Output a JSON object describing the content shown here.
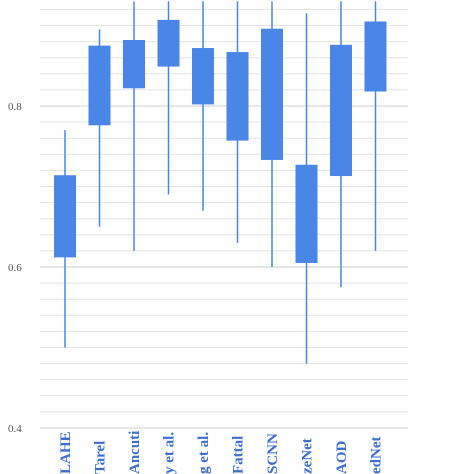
{
  "chart_data": {
    "type": "box",
    "title": "",
    "xlabel": "",
    "ylabel": "",
    "ylim": [
      0.4,
      0.9
    ],
    "yticks": [
      0.4,
      0.6,
      0.8
    ],
    "ytick_labels": [
      "0.4",
      "0.6",
      "0.8"
    ],
    "grid": true,
    "categories": [
      "LAHE",
      "Tarel",
      "Ancuti",
      "y et al.",
      "g et al.",
      "Fattal",
      "SCNN",
      "zeNet",
      "AOD",
      "edNet"
    ],
    "series": [
      {
        "whisker_low": [
          0.5,
          0.65,
          0.62,
          0.69,
          0.67,
          0.63,
          0.6,
          0.48,
          0.575,
          0.62
        ],
        "q1": [
          0.612,
          0.776,
          0.822,
          0.849,
          0.802,
          0.757,
          0.733,
          0.605,
          0.713,
          0.818
        ],
        "q3": [
          0.714,
          0.875,
          0.882,
          0.907,
          0.872,
          0.867,
          0.896,
          0.727,
          0.876,
          0.905
        ],
        "whisker_high": [
          0.77,
          0.895,
          0.93,
          0.93,
          0.93,
          0.93,
          0.93,
          0.915,
          0.93,
          0.93
        ]
      }
    ],
    "colors": {
      "box": "#4a86e8",
      "grid": "#e4e4e4",
      "label": "#3b6fd4"
    }
  }
}
